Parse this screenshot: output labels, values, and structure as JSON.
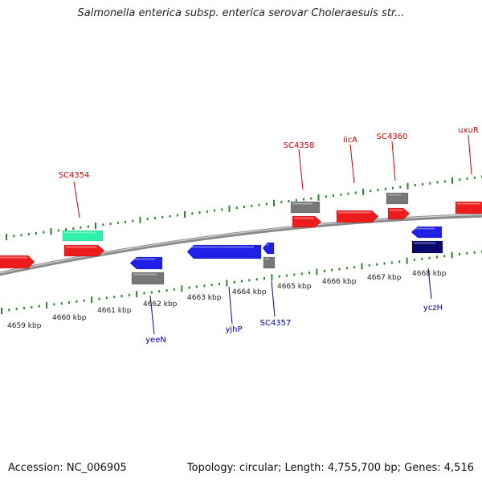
{
  "title": "Salmonella enterica subsp. enterica serovar Choleraesuis str...",
  "footer": {
    "accession": "Accession: NC_006905",
    "topology": "Topology: circular; Length: 4,755,700 bp; Genes: 4,516"
  },
  "colors": {
    "forward_gene": "#ee1c1c",
    "reverse_gene": "#1f1fe6",
    "rna": "#2ff0a8",
    "pseudo": "#777777",
    "dark": "#0a0a6e",
    "backbone": "#8a8a8a",
    "tick": "#2f7f2f",
    "label_red": "#cc0000",
    "label_blue": "#0000aa"
  },
  "ruler": {
    "labels": [
      "4659 kbp",
      "4660 kbp",
      "4661 kbp",
      "4662 kbp",
      "4663 kbp",
      "4664 kbp",
      "4665 kbp",
      "4666 kbp",
      "4667 kbp",
      "4668 kbp"
    ]
  },
  "gene_labels": {
    "top": [
      "SC4354",
      "SC4358",
      "iicA",
      "SC4360",
      "uxuR"
    ],
    "bottom": [
      "yeeN",
      "yjhP",
      "SC4357",
      "yczH"
    ]
  }
}
